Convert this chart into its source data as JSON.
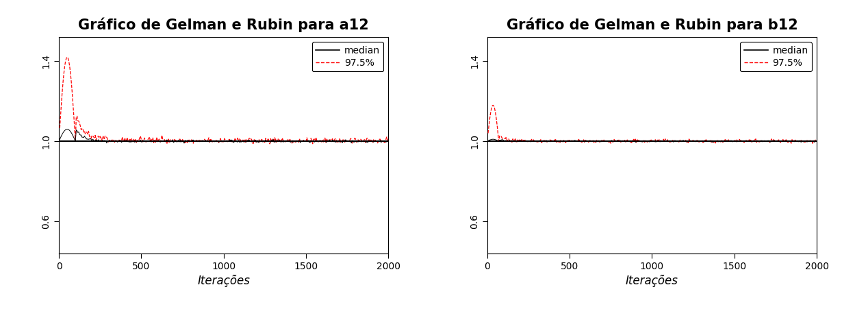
{
  "title_left": "Gráfico de Gelman e Rubin para a12",
  "title_right": "Gráfico de Gelman e Rubin para b12",
  "xlabel": "Iterações",
  "ylim": [
    0.44,
    1.52
  ],
  "xlim": [
    0,
    2000
  ],
  "yticks": [
    0.6,
    1.0,
    1.4
  ],
  "xticks": [
    0,
    500,
    1000,
    1500,
    2000
  ],
  "hline_value": 1.0,
  "background": "#ffffff",
  "median_color": "#000000",
  "quantile_color": "#ff0000",
  "title_fontsize": 15,
  "label_fontsize": 12,
  "tick_fontsize": 10
}
